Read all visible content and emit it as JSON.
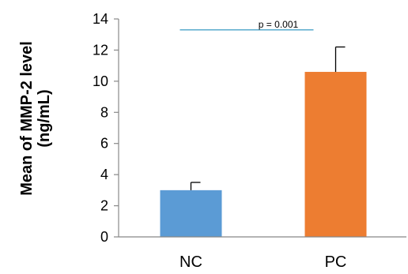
{
  "chart_data": {
    "type": "bar",
    "categories": [
      "NC",
      "PC"
    ],
    "values": [
      3.0,
      10.6
    ],
    "error_upper": [
      0.5,
      1.6
    ],
    "ylabel": [
      "Mean of MMP-2 level",
      "(ng/mL)"
    ],
    "ylim": [
      0,
      14
    ],
    "yticks": [
      0,
      2,
      4,
      6,
      8,
      10,
      12,
      14
    ],
    "ytick_labels": [
      "0",
      "2",
      "4",
      "6",
      "8",
      "10",
      "12",
      "14"
    ],
    "colors": [
      "#5b9bd5",
      "#ed7d31"
    ],
    "significance": {
      "label": "p = 0.001",
      "y": 13.3,
      "color": "#4aa3c8"
    },
    "grid": false,
    "legend": "none"
  }
}
